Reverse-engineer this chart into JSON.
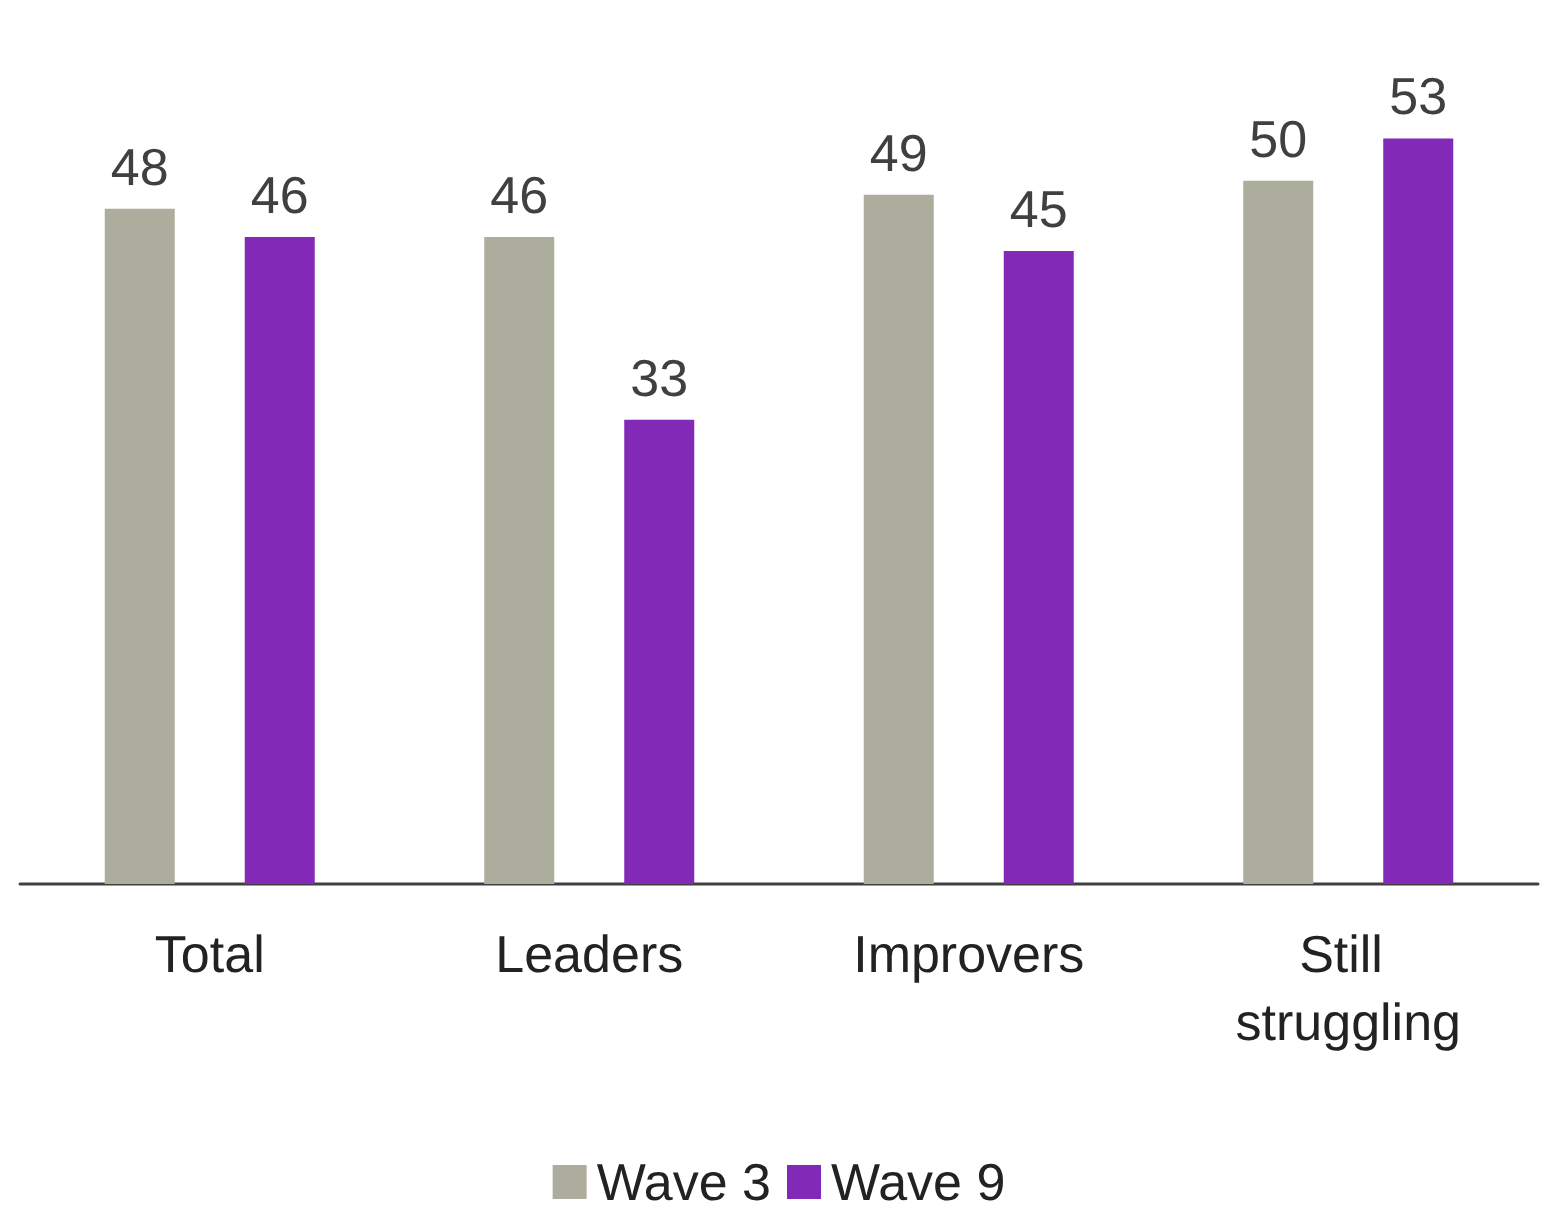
{
  "chart_data": {
    "type": "bar",
    "categories": [
      "Total",
      "Leaders",
      "Improvers",
      "Still struggling"
    ],
    "series": [
      {
        "name": "Wave 3",
        "color": "#adad9d",
        "values": [
          48,
          46,
          49,
          50
        ]
      },
      {
        "name": "Wave 9",
        "color": "#8229b8",
        "values": [
          46,
          33,
          45,
          53
        ]
      }
    ],
    "data_labels": true,
    "legend": "bottom"
  }
}
